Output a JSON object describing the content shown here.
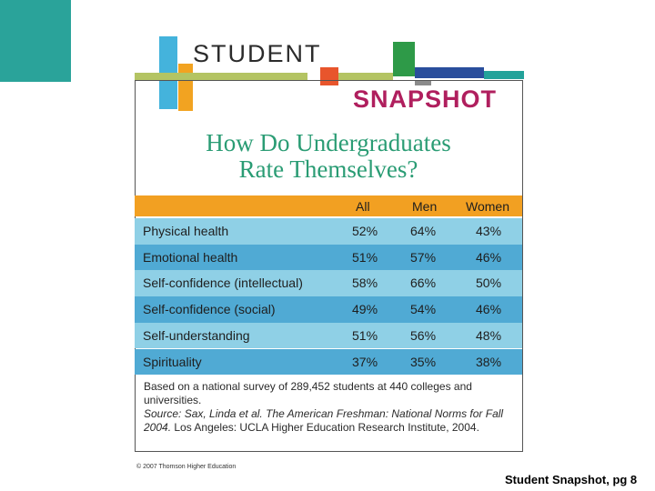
{
  "header": {
    "student_word": "STUDENT",
    "snapshot_word": "SNAPSHOT"
  },
  "title": {
    "line1": "How Do Undergraduates",
    "line2": "Rate Themselves?"
  },
  "table": {
    "columns": [
      "All",
      "Men",
      "Women"
    ],
    "rows": [
      {
        "label": "Physical health",
        "all": "52%",
        "men": "64%",
        "women": "43%"
      },
      {
        "label": "Emotional health",
        "all": "51%",
        "men": "57%",
        "women": "46%"
      },
      {
        "label": "Self-confidence (intellectual)",
        "all": "58%",
        "men": "66%",
        "women": "50%"
      },
      {
        "label": "Self-confidence (social)",
        "all": "49%",
        "men": "54%",
        "women": "46%"
      },
      {
        "label": "Self-understanding",
        "all": "51%",
        "men": "56%",
        "women": "48%"
      },
      {
        "label": "Spirituality",
        "all": "37%",
        "men": "35%",
        "women": "38%"
      }
    ]
  },
  "footnote": {
    "survey": "Based on a national survey of 289,452 students at 440 colleges and universities.",
    "source_label": "Source:",
    "source_authors": "Sax, Linda et al.",
    "source_title": "The American Freshman: National Norms for Fall 2004.",
    "source_publisher": "Los Angeles: UCLA Higher Education Research Institute, 2004."
  },
  "copyright": "© 2007 Thomson Higher Education",
  "caption": "Student Snapshot, pg 8",
  "colors": {
    "teal": "#2aa39a",
    "orange_header": "#f2a022",
    "row_light": "#8fd0e6",
    "row_dark": "#50aad4",
    "title_green": "#2a9c74",
    "snapshot_magenta": "#b01f5e"
  }
}
